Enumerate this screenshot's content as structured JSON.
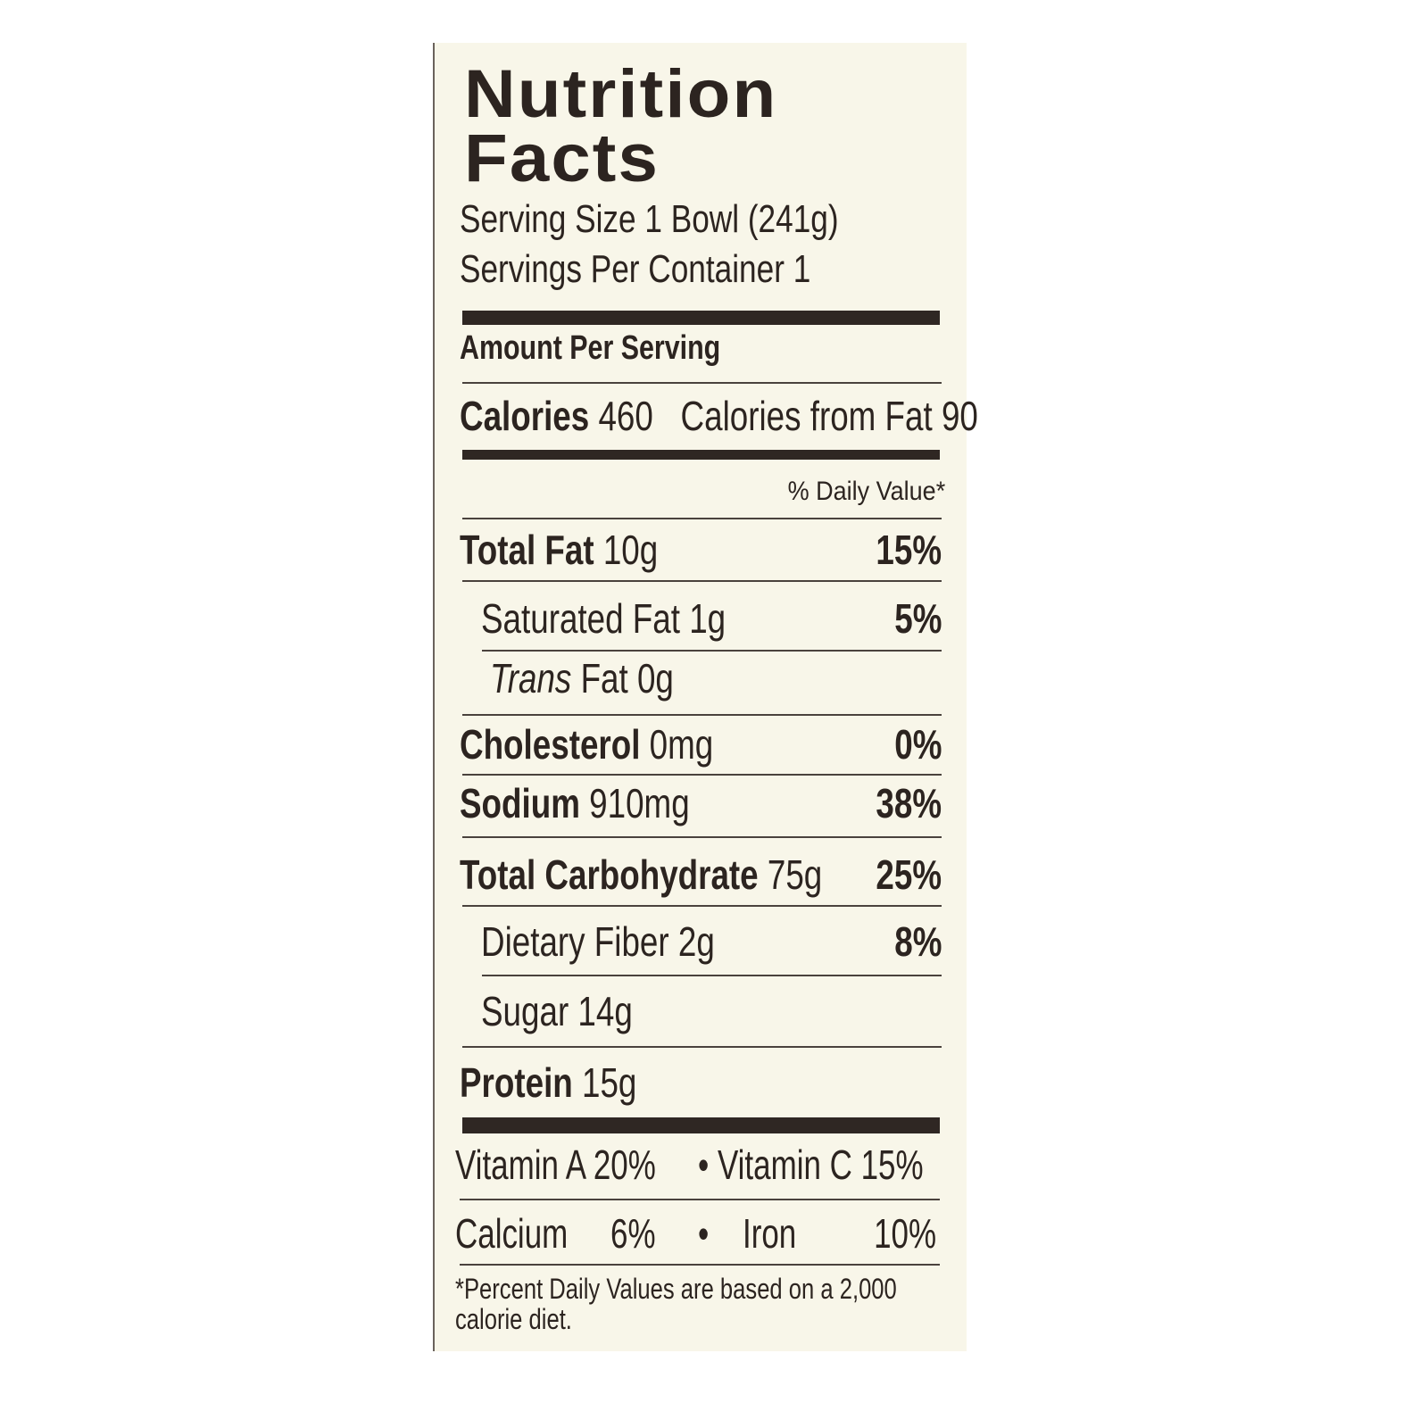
{
  "label": {
    "title_line1": "Nutrition",
    "title_line2": "Facts",
    "serving_size": "Serving Size 1 Bowl (241g)",
    "servings_per_container": "Servings Per Container  1",
    "amount_per_serving": "Amount Per Serving",
    "calories_label": "Calories",
    "calories_value": "460",
    "calories_from_fat": "Calories from Fat 90",
    "daily_value_header": "% Daily Value*",
    "nutrients": [
      {
        "name": "Total Fat",
        "amount": "10g",
        "dv": "15%"
      },
      {
        "name": "Saturated Fat",
        "amount": "1g",
        "dv": "5%"
      },
      {
        "name": "Trans",
        "amount": "Fat 0g",
        "dv": ""
      },
      {
        "name": "Cholesterol",
        "amount": "0mg",
        "dv": "0%"
      },
      {
        "name": "Sodium",
        "amount": "910mg",
        "dv": "38%"
      },
      {
        "name": "Total Carbohydrate",
        "amount": "75g",
        "dv": "25%"
      },
      {
        "name": "Dietary Fiber",
        "amount": "2g",
        "dv": "8%"
      },
      {
        "name": "Sugar",
        "amount": "14g",
        "dv": ""
      },
      {
        "name": "Protein",
        "amount": "15g",
        "dv": ""
      }
    ],
    "vitamins": [
      {
        "name": "Vitamin A",
        "dv": "20%"
      },
      {
        "name": "Vitamin C",
        "dv": "15%"
      },
      {
        "name": "Calcium",
        "dv": "6%"
      },
      {
        "name": "Iron",
        "dv": "10%"
      }
    ],
    "separator": "•",
    "footnote_line1": "*Percent Daily Values are based on a 2,000",
    "footnote_line2": "calorie diet."
  },
  "colors": {
    "background": "#f8f6e9",
    "ink": "#2c2420"
  }
}
